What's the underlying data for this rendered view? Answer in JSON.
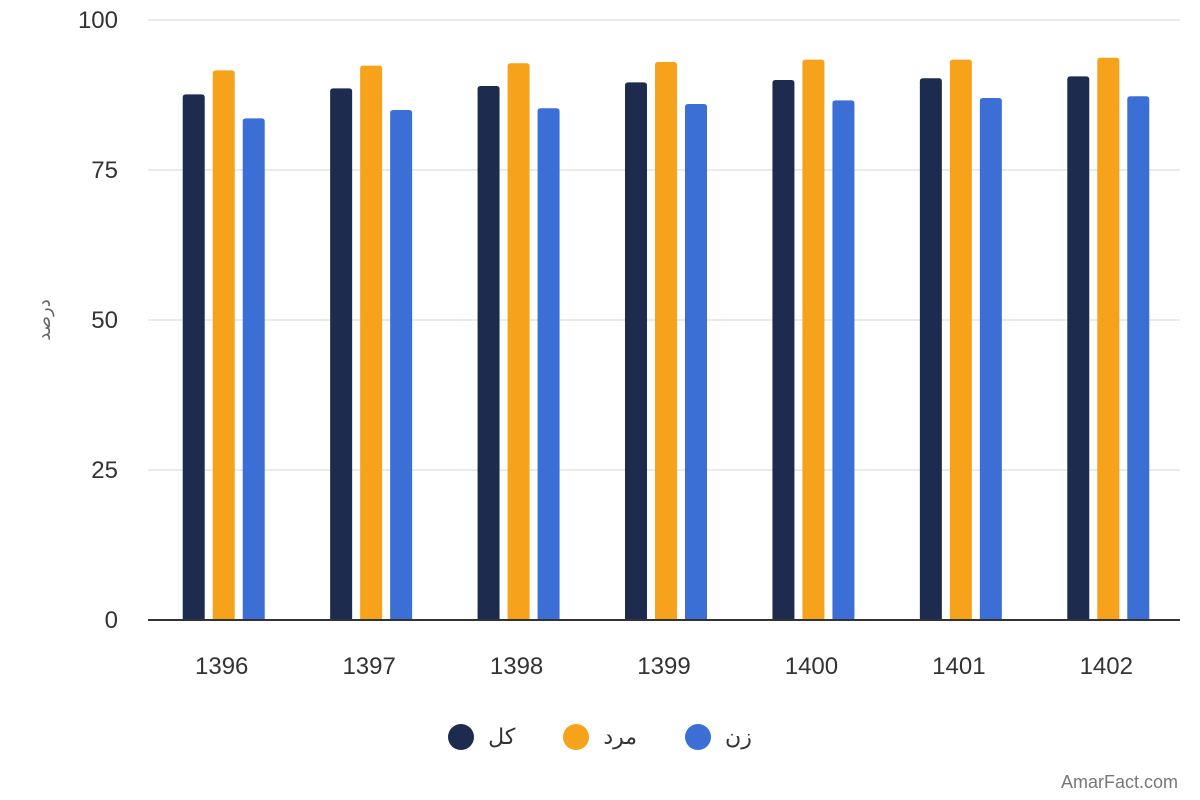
{
  "chart_data": {
    "type": "bar",
    "categories": [
      "1396",
      "1397",
      "1398",
      "1399",
      "1400",
      "1401",
      "1402"
    ],
    "series": [
      {
        "name": "کل",
        "color": "#1c2b4e",
        "values": [
          87.6,
          88.6,
          89.0,
          89.6,
          90.0,
          90.3,
          90.6
        ]
      },
      {
        "name": "مرد",
        "color": "#f6a21a",
        "values": [
          91.6,
          92.4,
          92.8,
          93.0,
          93.4,
          93.4,
          93.7
        ]
      },
      {
        "name": "زن",
        "color": "#3b6fd6",
        "values": [
          83.6,
          85.0,
          85.3,
          86.0,
          86.6,
          87.0,
          87.3
        ]
      }
    ],
    "ylabel": "درصد",
    "xlabel": "",
    "ylim": [
      0,
      100
    ],
    "yticks": [
      "0",
      "25",
      "50",
      "75",
      "100"
    ],
    "grid": true,
    "legend_position": "bottom"
  },
  "watermark": "AmarFact.com"
}
